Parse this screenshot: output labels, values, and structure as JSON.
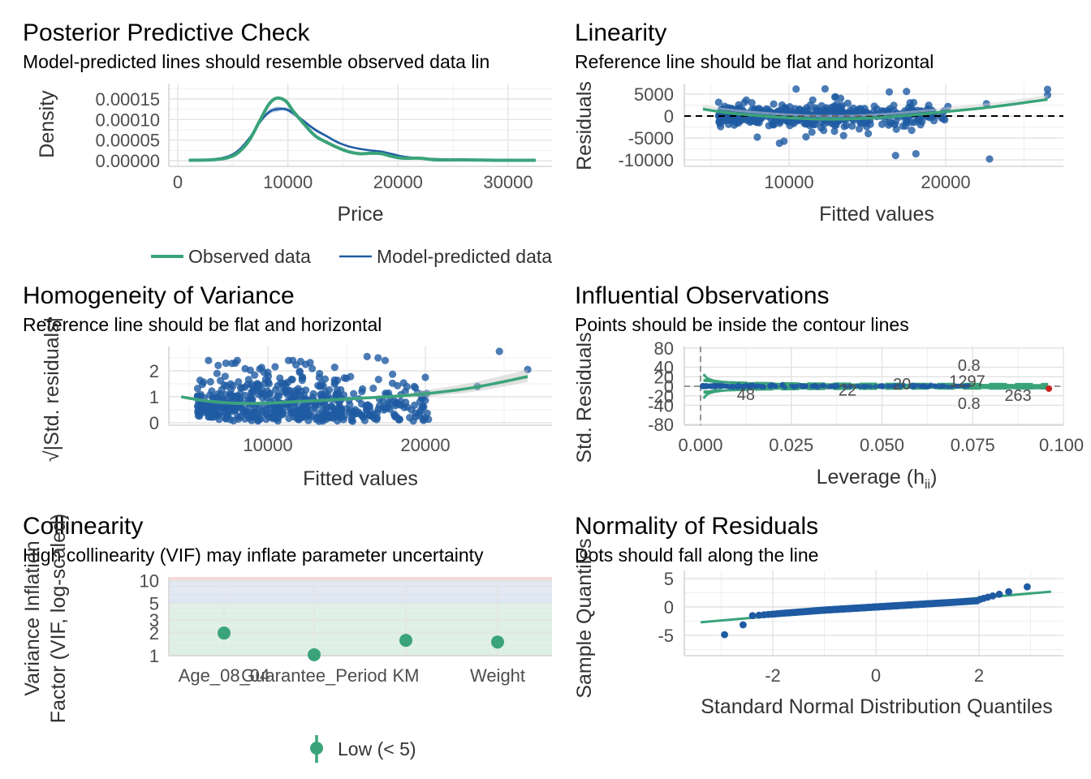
{
  "colors": {
    "green": "#3aa37a",
    "blue": "#1f5ba3",
    "red": "#cd201f",
    "band_high": "#f6dada",
    "band_mod": "#dde6f3",
    "band_low": "#def0e5"
  },
  "chart_data": [
    {
      "id": "ppc",
      "type": "line",
      "title": "Posterior Predictive Check",
      "subtitle": "Model-predicted lines should resemble observed data lin",
      "xlabel": "Price",
      "ylabel": "Density",
      "xlim": [
        0,
        32500
      ],
      "ylim": [
        0,
        0.00017
      ],
      "xticks": [
        0,
        10000,
        20000,
        30000
      ],
      "xtick_labels": [
        "0",
        "10000",
        "20000",
        "30000"
      ],
      "yticks": [
        0,
        5e-05,
        0.0001,
        0.00015
      ],
      "ytick_labels": [
        "0.00000",
        "0.00005",
        "0.00010",
        "0.00015"
      ],
      "series": [
        {
          "name": "Observed data",
          "x": [
            1000,
            3000,
            4500,
            5500,
            6500,
            7500,
            8300,
            9000,
            9800,
            10500,
            11500,
            12500,
            13500,
            14500,
            15500,
            16500,
            17500,
            18500,
            19500,
            20500,
            22000,
            23500,
            26000,
            29000,
            32500
          ],
          "y": [
            1e-06,
            2e-06,
            7e-06,
            2e-05,
            5e-05,
            0.0001,
            0.000138,
            0.000152,
            0.000145,
            0.00012,
            8.8e-05,
            6e-05,
            4.5e-05,
            3.2e-05,
            2.2e-05,
            1.7e-05,
            1.8e-05,
            1.7e-05,
            1e-05,
            6e-06,
            6e-06,
            2e-06,
            2e-06,
            1e-06,
            1e-06
          ]
        },
        {
          "name": "Model-predicted data",
          "x": [
            1000,
            3000,
            4500,
            5500,
            6500,
            7500,
            8300,
            9000,
            9800,
            10500,
            11500,
            12500,
            13500,
            14500,
            15500,
            16500,
            17500,
            18500,
            19500,
            20500,
            22000,
            23500,
            26000,
            29000,
            32500
          ],
          "y": [
            1e-06,
            3e-06,
            1e-05,
            2.5e-05,
            5.5e-05,
            9.5e-05,
            0.000118,
            0.000125,
            0.000125,
            0.000115,
            9.5e-05,
            7.5e-05,
            6e-05,
            4.5e-05,
            3.5e-05,
            2.9e-05,
            2.5e-05,
            2.2e-05,
            1.6e-05,
            1e-05,
            6e-06,
            4e-06,
            2e-06,
            1e-06,
            1e-06
          ]
        }
      ]
    },
    {
      "id": "linearity",
      "type": "scatter",
      "title": "Linearity",
      "subtitle": "Reference line should be flat and horizontal",
      "xlabel": "Fitted values",
      "ylabel": "Residuals",
      "xlim": [
        3500,
        27000
      ],
      "ylim": [
        -10500,
        7000
      ],
      "xticks": [
        10000,
        20000
      ],
      "xtick_labels": [
        "10000",
        "20000"
      ],
      "yticks": [
        -10000,
        -5000,
        0,
        5000
      ],
      "ytick_labels": [
        "-10000",
        "-5000",
        "0",
        "5000"
      ],
      "reference_y": 0,
      "smooth": {
        "x": [
          4500,
          6000,
          8000,
          10000,
          12000,
          14000,
          16000,
          18000,
          20000,
          23000,
          26500
        ],
        "y": [
          1600,
          800,
          100,
          -400,
          -700,
          -650,
          -300,
          300,
          1000,
          2100,
          3800
        ]
      },
      "outliers": [
        [
          12300,
          6200
        ],
        [
          16400,
          5500
        ],
        [
          16800,
          -9000
        ],
        [
          17500,
          5600
        ],
        [
          18100,
          -8600
        ],
        [
          22800,
          -9800
        ],
        [
          22600,
          2800
        ],
        [
          26500,
          6100
        ],
        [
          26500,
          4800
        ]
      ]
    },
    {
      "id": "homogeneity",
      "type": "scatter",
      "title": "Homogeneity of Variance",
      "subtitle": "Reference line should be flat and horizontal",
      "xlabel": "Fitted values",
      "ylabel": "√|Std. residuals|",
      "xlim": [
        3500,
        27000
      ],
      "ylim": [
        -0.05,
        2.85
      ],
      "xticks": [
        10000,
        20000
      ],
      "xtick_labels": [
        "10000",
        "20000"
      ],
      "yticks": [
        0,
        1,
        2
      ],
      "ytick_labels": [
        "0",
        "1",
        "2"
      ],
      "smooth": {
        "x": [
          4500,
          6000,
          8000,
          10000,
          12000,
          14000,
          16000,
          18000,
          20000,
          23000,
          26500
        ],
        "y": [
          1.0,
          0.85,
          0.75,
          0.76,
          0.82,
          0.88,
          0.95,
          1.02,
          1.12,
          1.35,
          1.78
        ]
      },
      "outliers": [
        [
          26500,
          2.05
        ],
        [
          24700,
          2.75
        ],
        [
          23300,
          1.4
        ],
        [
          16300,
          2.55
        ],
        [
          17000,
          2.5
        ],
        [
          12400,
          2.25
        ],
        [
          20000,
          1.75
        ],
        [
          19000,
          0.2
        ]
      ]
    },
    {
      "id": "influential",
      "type": "scatter",
      "title": "Influential Observations",
      "subtitle": "Points should be inside the contour lines",
      "xlabel": "Leverage (h",
      "xlabel_sub": "ii",
      "xlabel_end": ")",
      "ylabel": "Std. Residuals",
      "xlim": [
        -0.001,
        0.1
      ],
      "ylim": [
        -85,
        82
      ],
      "xticks": [
        0,
        0.025,
        0.05,
        0.075,
        0.1
      ],
      "xtick_labels": [
        "0.000",
        "0.025",
        "0.050",
        "0.075",
        "0.100"
      ],
      "yticks": [
        -80,
        -40,
        -20,
        0,
        20,
        40,
        80
      ],
      "ytick_labels": [
        "-80",
        "-40",
        "-20",
        "0",
        "20",
        "40",
        "80"
      ],
      "contour_label_top": "0.8",
      "contour_label_bottom": "0.8",
      "point_labels": [
        {
          "text": "48",
          "x": 0.0125,
          "y": -17,
          "color": "blue"
        },
        {
          "text": "22",
          "x": 0.0405,
          "y": -8,
          "color": "blue"
        },
        {
          "text": "20",
          "x": 0.0555,
          "y": 5,
          "color": "blue"
        },
        {
          "text": "1297",
          "x": 0.0735,
          "y": 11,
          "color": "blue"
        },
        {
          "text": "263",
          "x": 0.0875,
          "y": -19,
          "color": "red"
        }
      ],
      "outlier": [
        0.096,
        -5
      ]
    },
    {
      "id": "collinearity",
      "type": "scatter",
      "title": "Collinearity",
      "subtitle": "High collinearity (VIF) may inflate parameter uncertainty",
      "ylabel_line1": "Variance Inflation",
      "ylabel_line2": "Factor (VIF, log-scaled)",
      "scale": "log",
      "ylim": [
        1,
        11.2
      ],
      "yticks": [
        1,
        2,
        3,
        5,
        10
      ],
      "ytick_labels": [
        "1",
        "2",
        "3",
        "5",
        "10"
      ],
      "categories": [
        "Age_08_04",
        "Guarantee_Period",
        "KM",
        "Weight"
      ],
      "values": [
        2.0,
        1.03,
        1.6,
        1.52
      ],
      "legend": "Low (< 5)"
    },
    {
      "id": "normality",
      "type": "scatter",
      "title": "Normality of Residuals",
      "subtitle": "Dots should fall along the line",
      "xlabel": "Standard Normal Distribution Quantiles",
      "ylabel": "Sample Quantiles",
      "xlim": [
        -3.55,
        3.55
      ],
      "ylim": [
        -8.4,
        5.6
      ],
      "xticks": [
        -2,
        0,
        2
      ],
      "xtick_labels": [
        "-2",
        "0",
        "2"
      ],
      "yticks": [
        -5,
        0,
        5
      ],
      "ytick_labels": [
        "-5",
        "0",
        "5"
      ],
      "reference_line": {
        "x": [
          -3.4,
          3.4
        ],
        "y": [
          -2.7,
          2.7
        ]
      }
    }
  ]
}
